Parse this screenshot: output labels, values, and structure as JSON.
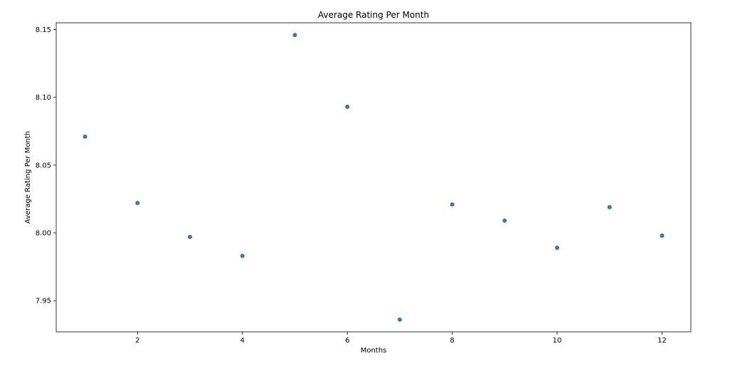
{
  "chart_data": {
    "type": "scatter",
    "title": "Average Rating Per Month",
    "xlabel": "Months",
    "ylabel": "Average Rating Per Month",
    "x": [
      1,
      2,
      3,
      4,
      5,
      6,
      7,
      8,
      9,
      10,
      11,
      12
    ],
    "y": [
      8.071,
      8.022,
      7.997,
      7.983,
      8.146,
      8.093,
      7.936,
      8.021,
      8.009,
      7.989,
      8.019,
      7.998
    ],
    "xlim": [
      0.45,
      12.55
    ],
    "ylim": [
      7.927,
      8.155
    ],
    "xticks": [
      2,
      4,
      6,
      8,
      10,
      12
    ],
    "xtick_labels": [
      "2",
      "4",
      "6",
      "8",
      "10",
      "12"
    ],
    "yticks": [
      7.95,
      8.0,
      8.05,
      8.1,
      8.15
    ],
    "ytick_labels": [
      "7.95",
      "8.00",
      "8.05",
      "8.10",
      "8.15"
    ],
    "grid": false,
    "marker_color": "#3a76b0"
  }
}
